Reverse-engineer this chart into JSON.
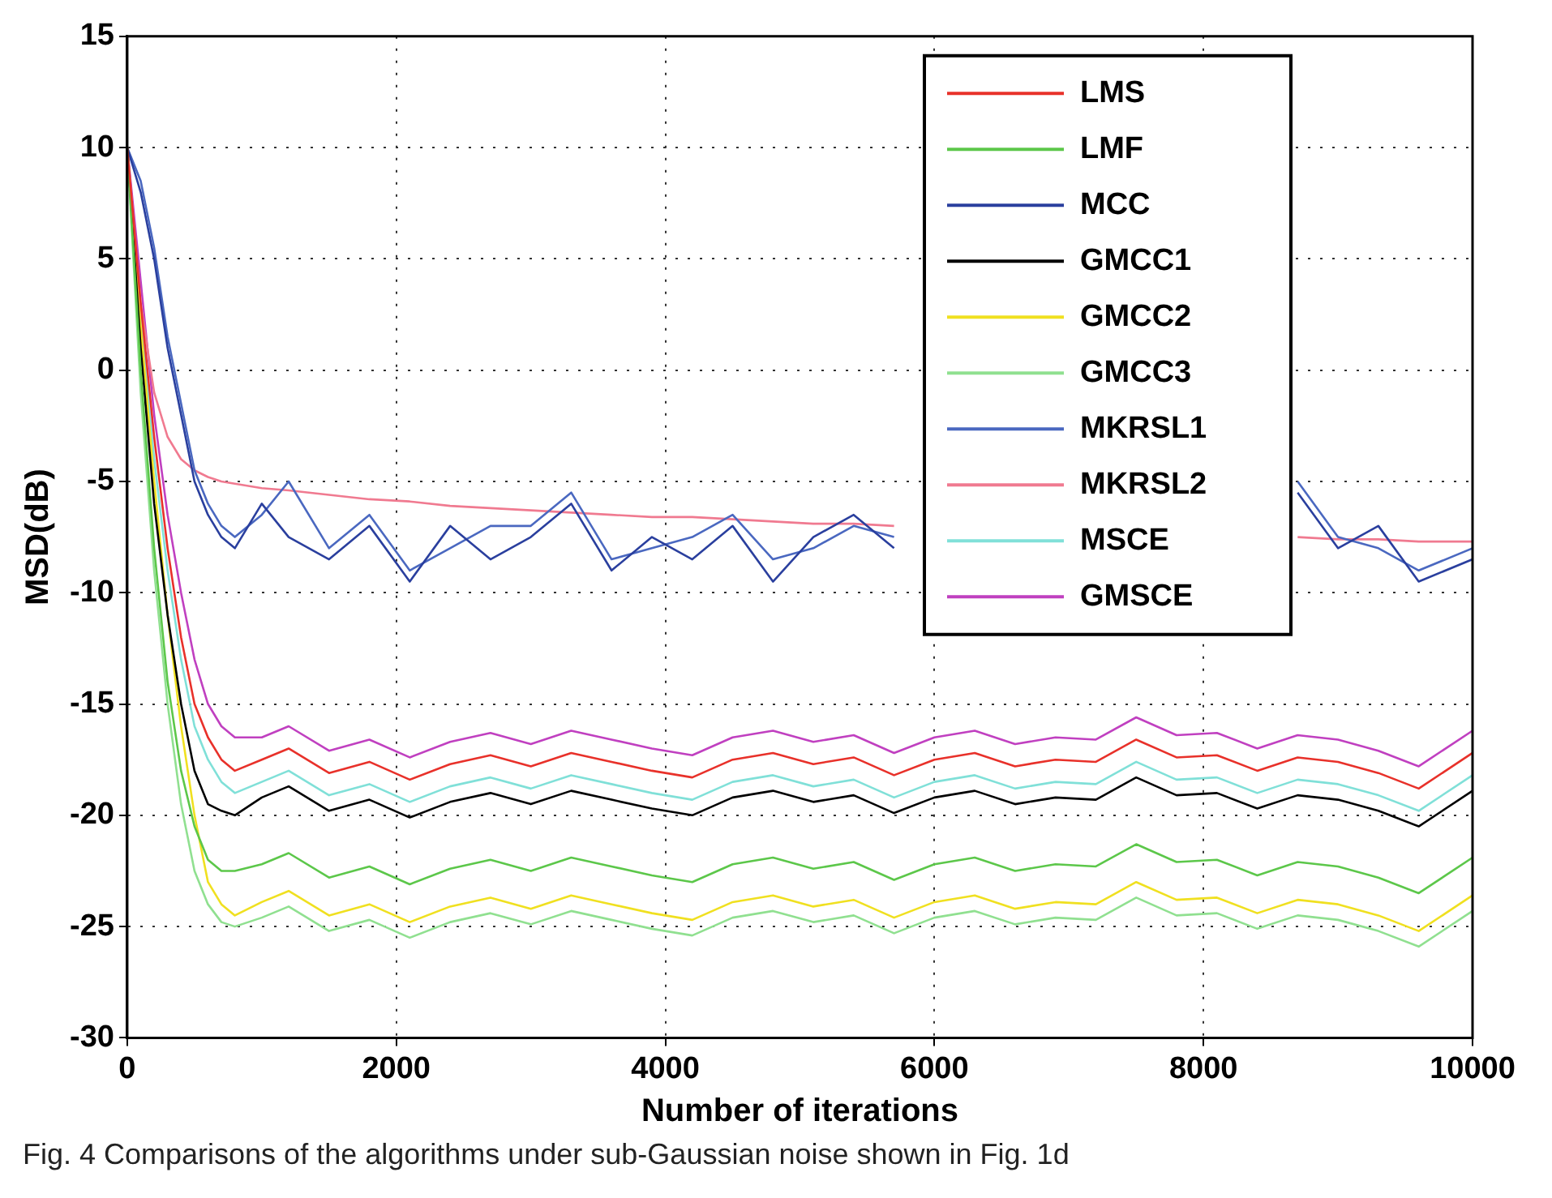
{
  "chart_data": {
    "type": "line",
    "xlabel": "Number of iterations",
    "ylabel": "MSD(dB)",
    "annotations": [
      "Fig. 4 Comparisons of the algorithms under sub-Gaussian noise shown in Fig. 1d"
    ],
    "x": [
      0,
      100,
      200,
      300,
      400,
      500,
      600,
      700,
      800,
      1000,
      1200,
      1500,
      1800,
      2100,
      2400,
      2700,
      3000,
      3300,
      3600,
      3900,
      4200,
      4500,
      4800,
      5100,
      5400,
      5700,
      6000,
      6300,
      6600,
      6900,
      7200,
      7500,
      7800,
      8100,
      8400,
      8700,
      9000,
      9300,
      9600,
      10000
    ],
    "xlim": [
      0,
      10000
    ],
    "xticks": [
      0,
      2000,
      4000,
      6000,
      8000,
      10000
    ],
    "ylim": [
      -30,
      15
    ],
    "yticks": [
      -30,
      -25,
      -20,
      -15,
      -10,
      -5,
      0,
      5,
      10,
      15
    ],
    "grid": true,
    "legend": "top right",
    "marker": "none",
    "line_style": "solid",
    "series": [
      {
        "name": "LMS",
        "color": "#e8312a",
        "values": [
          10,
          3,
          -3,
          -8,
          -12,
          -15,
          -16.5,
          -17.5,
          -18,
          -17.5,
          -17.0,
          -18.1,
          -17.6,
          -18.4,
          -17.7,
          -17.3,
          -17.8,
          -17.2,
          -17.6,
          -18.0,
          -18.3,
          -17.5,
          -17.2,
          -17.7,
          -17.4,
          -18.2,
          -17.5,
          -17.2,
          -17.8,
          -17.5,
          -17.6,
          -16.6,
          -17.4,
          -17.3,
          -18.0,
          -17.4,
          -17.6,
          -18.1,
          -18.8,
          -17.2
        ]
      },
      {
        "name": "LMF",
        "color": "#5cc74a",
        "values": [
          10,
          0,
          -8,
          -14,
          -18,
          -20.5,
          -22,
          -22.5,
          -22.5,
          -22.2,
          -21.7,
          -22.8,
          -22.3,
          -23.1,
          -22.4,
          -22.0,
          -22.5,
          -21.9,
          -22.3,
          -22.7,
          -23.0,
          -22.2,
          -21.9,
          -22.4,
          -22.1,
          -22.9,
          -22.2,
          -21.9,
          -22.5,
          -22.2,
          -22.3,
          -21.3,
          -22.1,
          -22.0,
          -22.7,
          -22.1,
          -22.3,
          -22.8,
          -23.5,
          -21.9
        ]
      },
      {
        "name": "MCC",
        "color": "#2a3f9e",
        "values": [
          10,
          8,
          5,
          1,
          -2,
          -5,
          -6.5,
          -7.5,
          -8,
          -6,
          -7.5,
          -8.5,
          -7,
          -9.5,
          -7,
          -8.5,
          -7.5,
          -6,
          -9,
          -7.5,
          -8.5,
          -7,
          -9.5,
          -7.5,
          -6.5,
          -8,
          null,
          null,
          null,
          null,
          null,
          null,
          null,
          null,
          null,
          -5.5,
          -8,
          -7,
          -9.5,
          -8.5
        ]
      },
      {
        "name": "GMCC1",
        "color": "#000000",
        "values": [
          10,
          1,
          -6,
          -11,
          -15,
          -18,
          -19.5,
          -19.8,
          -20,
          -19.2,
          -18.7,
          -19.8,
          -19.3,
          -20.1,
          -19.4,
          -19.0,
          -19.5,
          -18.9,
          -19.3,
          -19.7,
          -20.0,
          -19.2,
          -18.9,
          -19.4,
          -19.1,
          -19.9,
          -19.2,
          -18.9,
          -19.5,
          -19.2,
          -19.3,
          -18.3,
          -19.1,
          -19.0,
          -19.7,
          -19.1,
          -19.3,
          -19.8,
          -20.5,
          -18.9
        ]
      },
      {
        "name": "GMCC2",
        "color": "#f0e020",
        "values": [
          10,
          2,
          -5,
          -11,
          -16,
          -20,
          -23,
          -24,
          -24.5,
          -23.9,
          -23.4,
          -24.5,
          -24.0,
          -24.8,
          -24.1,
          -23.7,
          -24.2,
          -23.6,
          -24.0,
          -24.4,
          -24.7,
          -23.9,
          -23.6,
          -24.1,
          -23.8,
          -24.6,
          -23.9,
          -23.6,
          -24.2,
          -23.9,
          -24.0,
          -23.0,
          -23.8,
          -23.7,
          -24.4,
          -23.8,
          -24.0,
          -24.5,
          -25.2,
          -23.6
        ]
      },
      {
        "name": "GMCC3",
        "color": "#90e090",
        "values": [
          10,
          -1,
          -9,
          -15,
          -19.5,
          -22.5,
          -24,
          -24.8,
          -25,
          -24.6,
          -24.1,
          -25.2,
          -24.7,
          -25.5,
          -24.8,
          -24.4,
          -24.9,
          -24.3,
          -24.7,
          -25.1,
          -25.4,
          -24.6,
          -24.3,
          -24.8,
          -24.5,
          -25.3,
          -24.6,
          -24.3,
          -24.9,
          -24.6,
          -24.7,
          -23.7,
          -24.5,
          -24.4,
          -25.1,
          -24.5,
          -24.7,
          -25.2,
          -25.9,
          -24.3
        ]
      },
      {
        "name": "MKRSL1",
        "color": "#4a68c0",
        "values": [
          10,
          8.5,
          5.5,
          1.5,
          -1.5,
          -4.5,
          -6,
          -7,
          -7.5,
          -6.5,
          -5,
          -8,
          -6.5,
          -9,
          -8,
          -7,
          -7,
          -5.5,
          -8.5,
          -8,
          -7.5,
          -6.5,
          -8.5,
          -8,
          -7,
          -7.5,
          null,
          null,
          null,
          null,
          null,
          null,
          null,
          null,
          null,
          -5,
          -7.5,
          -8,
          -9,
          -8
        ]
      },
      {
        "name": "MKRSL2",
        "color": "#f07a90",
        "values": [
          10,
          3,
          -1,
          -3,
          -4,
          -4.5,
          -4.8,
          -5,
          -5.1,
          -5.3,
          -5.4,
          -5.6,
          -5.8,
          -5.9,
          -6.1,
          -6.2,
          -6.3,
          -6.4,
          -6.5,
          -6.6,
          -6.6,
          -6.7,
          -6.8,
          -6.9,
          -6.9,
          -7.0,
          null,
          null,
          null,
          null,
          null,
          null,
          null,
          null,
          null,
          -7.5,
          -7.6,
          -7.6,
          -7.7,
          -7.7
        ]
      },
      {
        "name": "MSCE",
        "color": "#80e0d8",
        "values": [
          10,
          2.5,
          -4,
          -9,
          -13,
          -16,
          -17.5,
          -18.5,
          -19,
          -18.5,
          -18.0,
          -19.1,
          -18.6,
          -19.4,
          -18.7,
          -18.3,
          -18.8,
          -18.2,
          -18.6,
          -19.0,
          -19.3,
          -18.5,
          -18.2,
          -18.7,
          -18.4,
          -19.2,
          -18.5,
          -18.2,
          -18.8,
          -18.5,
          -18.6,
          -17.6,
          -18.4,
          -18.3,
          -19.0,
          -18.4,
          -18.6,
          -19.1,
          -19.8,
          -18.2
        ]
      },
      {
        "name": "GMSCE",
        "color": "#c040c0",
        "values": [
          10,
          4,
          -2,
          -6.5,
          -10,
          -13,
          -15,
          -16,
          -16.5,
          -16.5,
          -16.0,
          -17.1,
          -16.6,
          -17.4,
          -16.7,
          -16.3,
          -16.8,
          -16.2,
          -16.6,
          -17.0,
          -17.3,
          -16.5,
          -16.2,
          -16.7,
          -16.4,
          -17.2,
          -16.5,
          -16.2,
          -16.8,
          -16.5,
          -16.6,
          -15.6,
          -16.4,
          -16.3,
          -17.0,
          -16.4,
          -16.6,
          -17.1,
          -17.8,
          -16.2
        ]
      }
    ]
  }
}
